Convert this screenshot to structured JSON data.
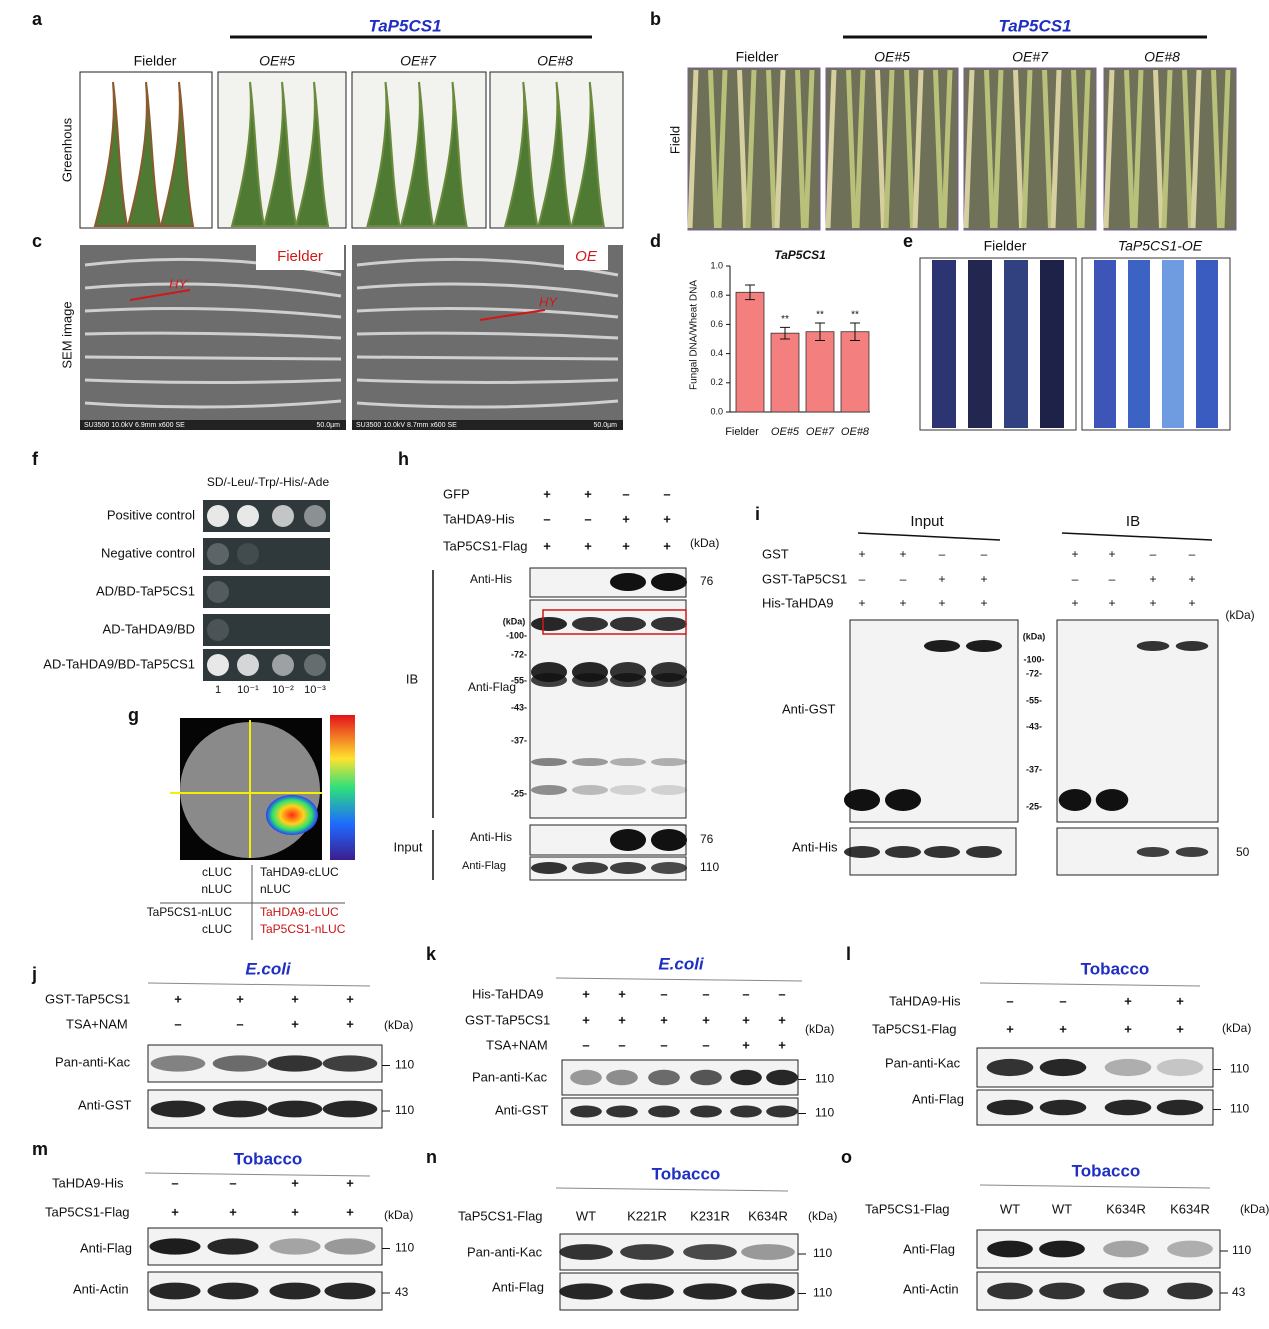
{
  "a": {
    "label": "a",
    "gene": "TaP5CS1",
    "row_label": "Greenhous",
    "columns": [
      "Fielder",
      "OE#5",
      "OE#7",
      "OE#8"
    ]
  },
  "b": {
    "label": "b",
    "gene": "TaP5CS1",
    "row_label": "Field",
    "columns": [
      "Fielder",
      "OE#5",
      "OE#7",
      "OE#8"
    ]
  },
  "c": {
    "label": "c",
    "row_label": "SEM image",
    "images": [
      {
        "tag": "Fielder",
        "hy": "HY",
        "footer": "SU3500 10.0kV 6.9mm x600 SE",
        "scale": "50.0µm"
      },
      {
        "tag": "OE",
        "hy": "HY",
        "footer": "SU3500 10.0kV 8.7mm x600 SE",
        "scale": "50.0µm"
      }
    ]
  },
  "chart_data": {
    "type": "bar",
    "label": "d",
    "title": "TaP5CS1",
    "ylabel": "Fungal DNA/Wheat DNA",
    "categories": [
      "Fielder",
      "OE#5",
      "OE#7",
      "OE#8"
    ],
    "values": [
      0.82,
      0.54,
      0.55,
      0.55
    ],
    "errors": [
      0.05,
      0.04,
      0.06,
      0.06
    ],
    "significance": [
      null,
      "**",
      "**",
      "**"
    ],
    "color": "#f47f7f",
    "ylim": [
      0,
      1.0
    ],
    "yticks": [
      {
        "value": 0,
        "label": "0.0"
      },
      0.2,
      0.4,
      0.6,
      0.8,
      {
        "value": 1.0,
        "label": "1.0"
      }
    ]
  },
  "e": {
    "label": "e",
    "columns": [
      "Fielder",
      "TaP5CS1-OE"
    ]
  },
  "f": {
    "label": "f",
    "medium": "SD/-Leu/-Trp/-His/-Ade",
    "rows": [
      "Positive  control",
      "Negative  control",
      "AD/BD-TaP5CS1",
      "AD-TaHDA9/BD",
      "AD-TaHDA9/BD-TaP5CS1"
    ],
    "dilutions": [
      "1",
      "10⁻¹",
      "10⁻²",
      "10⁻³"
    ]
  },
  "g": {
    "label": "g",
    "quadrants": [
      [
        "cLUC",
        "nLUC"
      ],
      [
        "TaHDA9-cLUC",
        "nLUC"
      ],
      [
        "TaP5CS1-nLUC",
        "cLUC"
      ],
      [
        "TaHDA9-cLUC",
        "TaP5CS1-nLUC"
      ]
    ]
  },
  "h": {
    "label": "h",
    "conditions": [
      {
        "name": "GFP",
        "signs": [
          "+",
          "+",
          "–",
          "–"
        ]
      },
      {
        "name": "TaHDA9-His",
        "signs": [
          "–",
          "–",
          "+",
          "+"
        ]
      },
      {
        "name": "TaP5CS1-Flag",
        "signs": [
          "+",
          "+",
          "+",
          "+"
        ]
      }
    ],
    "unit": "(kDa)",
    "groups": [
      "IB",
      "Input"
    ],
    "blots": [
      {
        "name": "Anti-His",
        "size": "76"
      },
      {
        "name": "Anti-Flag"
      },
      {
        "name": "Anti-His",
        "size": "76"
      },
      {
        "name": "Anti-Flag",
        "size": "110"
      }
    ],
    "ladder": [
      "(kDa)",
      "-100-",
      "-72-",
      "-55-",
      "-43-",
      "-37-",
      "-25-"
    ]
  },
  "i": {
    "label": "i",
    "groups": [
      "Input",
      "IB"
    ],
    "conditions": [
      {
        "name": "GST",
        "signs": [
          "+",
          "+",
          "–",
          "–"
        ]
      },
      {
        "name": "GST-TaP5CS1",
        "signs": [
          "–",
          "–",
          "+",
          "+"
        ]
      },
      {
        "name": "His-TaHDA9",
        "signs": [
          "+",
          "+",
          "+",
          "+"
        ]
      }
    ],
    "unit": "(kDa)",
    "ladder": [
      "(kDa)",
      "-100-",
      "-72-",
      "-55-",
      "-43-",
      "-37-",
      "-25-"
    ],
    "blots": [
      {
        "name": "Anti-GST"
      },
      {
        "name": "Anti-His",
        "size": "50"
      }
    ]
  },
  "j": {
    "label": "j",
    "title": "E.coli",
    "conditions": [
      {
        "name": "GST-TaP5CS1",
        "signs": [
          "+",
          "+",
          "+",
          "+"
        ]
      },
      {
        "name": "TSA+NAM",
        "signs": [
          "–",
          "–",
          "+",
          "+"
        ]
      }
    ],
    "unit": "(kDa)",
    "blots": [
      {
        "name": "Pan-anti-Kac",
        "size": "110"
      },
      {
        "name": "Anti-GST",
        "size": "110"
      }
    ]
  },
  "k": {
    "label": "k",
    "title": "E.coli",
    "conditions": [
      {
        "name": "His-TaHDA9",
        "signs": [
          "+",
          "+",
          "–",
          "–",
          "–",
          "–"
        ]
      },
      {
        "name": "GST-TaP5CS1",
        "signs": [
          "+",
          "+",
          "+",
          "+",
          "+",
          "+"
        ]
      },
      {
        "name": "TSA+NAM",
        "signs": [
          "–",
          "–",
          "–",
          "–",
          "+",
          "+"
        ]
      }
    ],
    "unit": "(kDa)",
    "blots": [
      {
        "name": "Pan-anti-Kac",
        "size": "110"
      },
      {
        "name": "Anti-GST",
        "size": "110"
      }
    ]
  },
  "l": {
    "label": "l",
    "title": "Tobacco",
    "conditions": [
      {
        "name": "TaHDA9-His",
        "signs": [
          "–",
          "–",
          "+",
          "+"
        ]
      },
      {
        "name": "TaP5CS1-Flag",
        "signs": [
          "+",
          "+",
          "+",
          "+"
        ]
      }
    ],
    "unit": "(kDa)",
    "blots": [
      {
        "name": "Pan-anti-Kac",
        "size": "110"
      },
      {
        "name": "Anti-Flag",
        "size": "110"
      }
    ]
  },
  "m": {
    "label": "m",
    "title": "Tobacco",
    "conditions": [
      {
        "name": "TaHDA9-His",
        "signs": [
          "–",
          "–",
          "+",
          "+"
        ]
      },
      {
        "name": "TaP5CS1-Flag",
        "signs": [
          "+",
          "+",
          "+",
          "+"
        ]
      }
    ],
    "unit": "(kDa)",
    "blots": [
      {
        "name": "Anti-Flag",
        "size": "110"
      },
      {
        "name": "Anti-Actin",
        "size": "43"
      }
    ]
  },
  "n": {
    "label": "n",
    "title": "Tobacco",
    "conditions": [
      {
        "name": "TaP5CS1-Flag",
        "signs": [
          "WT",
          "K221R",
          "K231R",
          "K634R"
        ]
      }
    ],
    "unit": "(kDa)",
    "blots": [
      {
        "name": "Pan-anti-Kac",
        "size": "110"
      },
      {
        "name": "Anti-Flag",
        "size": "110"
      }
    ]
  },
  "o": {
    "label": "o",
    "title": "Tobacco",
    "conditions": [
      {
        "name": "TaP5CS1-Flag",
        "signs": [
          "WT",
          "WT",
          "K634R",
          "K634R"
        ]
      }
    ],
    "unit": "(kDa)",
    "blots": [
      {
        "name": "Anti-Flag",
        "size": "110"
      },
      {
        "name": "Anti-Actin",
        "size": "43"
      }
    ]
  }
}
